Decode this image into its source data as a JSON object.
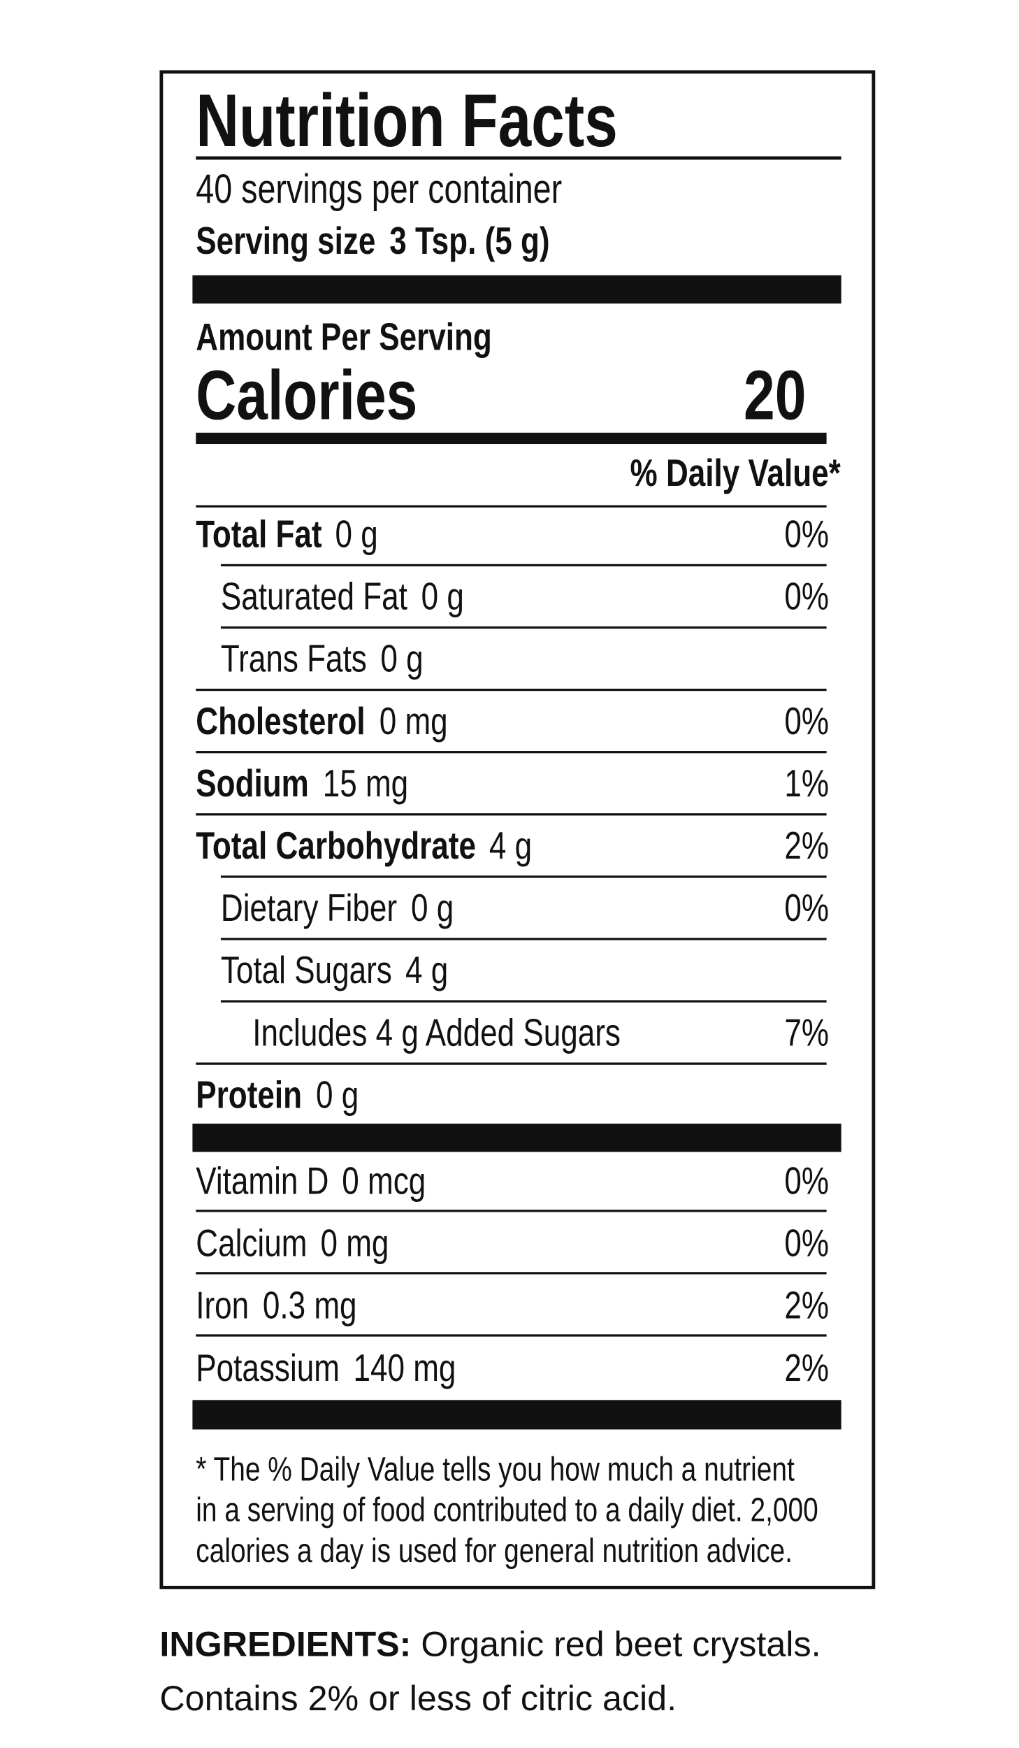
{
  "header": {
    "title": "Nutrition Facts",
    "servings": "40 servings per container",
    "serving_size_label": "Serving size",
    "serving_size": "3 Tsp. (5 g)"
  },
  "calories": {
    "heading": "Amount Per Serving",
    "label": "Calories",
    "value": 20
  },
  "dv_header": "% Daily Value*",
  "nutrients": [
    {
      "name": "Total Fat",
      "amount": "0 g",
      "dv": "0%",
      "bold": true,
      "indent": 0
    },
    {
      "name": "Saturated Fat",
      "amount": "0 g",
      "dv": "0%",
      "bold": false,
      "indent": 1
    },
    {
      "name": "Trans Fats",
      "amount": "0 g",
      "bold": false,
      "indent": 1
    },
    {
      "name": "Cholesterol",
      "amount": "0 mg",
      "dv": "0%",
      "bold": true,
      "indent": 0
    },
    {
      "name": "Sodium",
      "amount": "15 mg",
      "dv": "1%",
      "bold": true,
      "indent": 0
    },
    {
      "name": "Total Carbohydrate",
      "amount": "4 g",
      "dv": "2%",
      "bold": true,
      "indent": 0
    },
    {
      "name": "Dietary Fiber",
      "amount": "0 g",
      "dv": "0%",
      "bold": false,
      "indent": 1
    },
    {
      "name": "Total Sugars",
      "amount": "4 g",
      "bold": false,
      "indent": 1
    },
    {
      "name": "Includes 4 g Added Sugars",
      "dv": "7%",
      "bold": false,
      "indent": 2
    },
    {
      "name": "Protein",
      "amount": "0 g",
      "bold": true,
      "indent": 0
    }
  ],
  "vitamins": [
    {
      "name": "Vitamin D",
      "amount": "0 mcg",
      "dv": "0%"
    },
    {
      "name": "Calcium",
      "amount": "0 mg",
      "dv": "0%"
    },
    {
      "name": "Iron",
      "amount": "0.3 mg",
      "dv": "2%"
    },
    {
      "name": "Potassium",
      "amount": "140 mg",
      "dv": "2%"
    }
  ],
  "footnote": [
    "* The % Daily Value tells you how much a nutrient",
    "in a serving of food contributed to a daily diet. 2,000",
    "calories a day is used for general nutrition advice."
  ],
  "ingredients": {
    "label": "INGREDIENTS:",
    "text": "Organic red beet crystals. Contains 2% or less of citric acid."
  }
}
